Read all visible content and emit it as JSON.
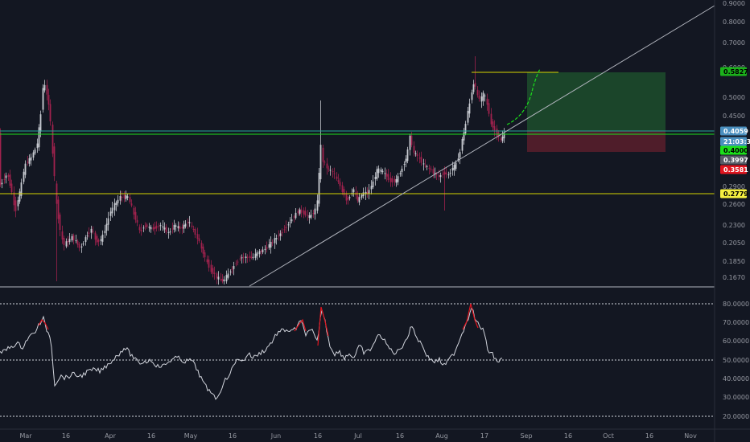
{
  "chart_data": [
    {
      "type": "candlestick",
      "price_axis": {
        "ticks": [
          "0.9000",
          "0.8000",
          "0.7000",
          "0.6000",
          "0.5000",
          "0.4500",
          "0.4000",
          "0.3500",
          "0.2900",
          "0.2600",
          "0.2300",
          "0.2050",
          "0.1850",
          "0.1670"
        ],
        "scale": "log"
      },
      "time_axis": {
        "ticks": [
          "Mar",
          "16",
          "Apr",
          "16",
          "May",
          "16",
          "Jun",
          "16",
          "Jul",
          "16",
          "Aug",
          "17",
          "Sep",
          "16",
          "Oct",
          "16",
          "Nov"
        ]
      },
      "price_badges": [
        {
          "label": "0.5827",
          "color": "#1bb21b",
          "text_color": "#000000"
        },
        {
          "label": "0.4059",
          "color": "#4a8fbf",
          "text_color": "#ffffff"
        },
        {
          "label": "21:03:36",
          "color": "#4a8fbf",
          "text_color": "#ffffff"
        },
        {
          "label": "0.4000",
          "color": "#1bdf1b",
          "text_color": "#000000"
        },
        {
          "label": "0.3997",
          "color": "#555b66",
          "text_color": "#ffffff"
        },
        {
          "label": "0.3581",
          "color": "#e0141e",
          "text_color": "#ffffff"
        },
        {
          "label": "0.2779",
          "color": "#f5f040",
          "text_color": "#000000"
        }
      ],
      "horizontal_levels": [
        {
          "value": 0.2779,
          "color": "#d4d400"
        },
        {
          "value": 0.4059,
          "color": "#26a69a"
        },
        {
          "value": 0.4,
          "color": "#1bdf1b"
        }
      ],
      "position_tool": {
        "entry": 0.3997,
        "target": 0.5827,
        "stop": 0.3581
      },
      "colors": {
        "up": "#c9ccd3",
        "down": "#a1224e",
        "trendline": "#b2b5be",
        "projection": "#1bdf1b"
      }
    },
    {
      "type": "line",
      "indicator": "RSI",
      "axis_ticks": [
        "80.0000",
        "70.0000",
        "60.0000",
        "50.0000",
        "40.0000",
        "30.0000",
        "20.0000"
      ],
      "levels": [
        80,
        50,
        20
      ],
      "colors": {
        "line": "#d1d4dc",
        "overbought": "#e0141e"
      }
    }
  ]
}
